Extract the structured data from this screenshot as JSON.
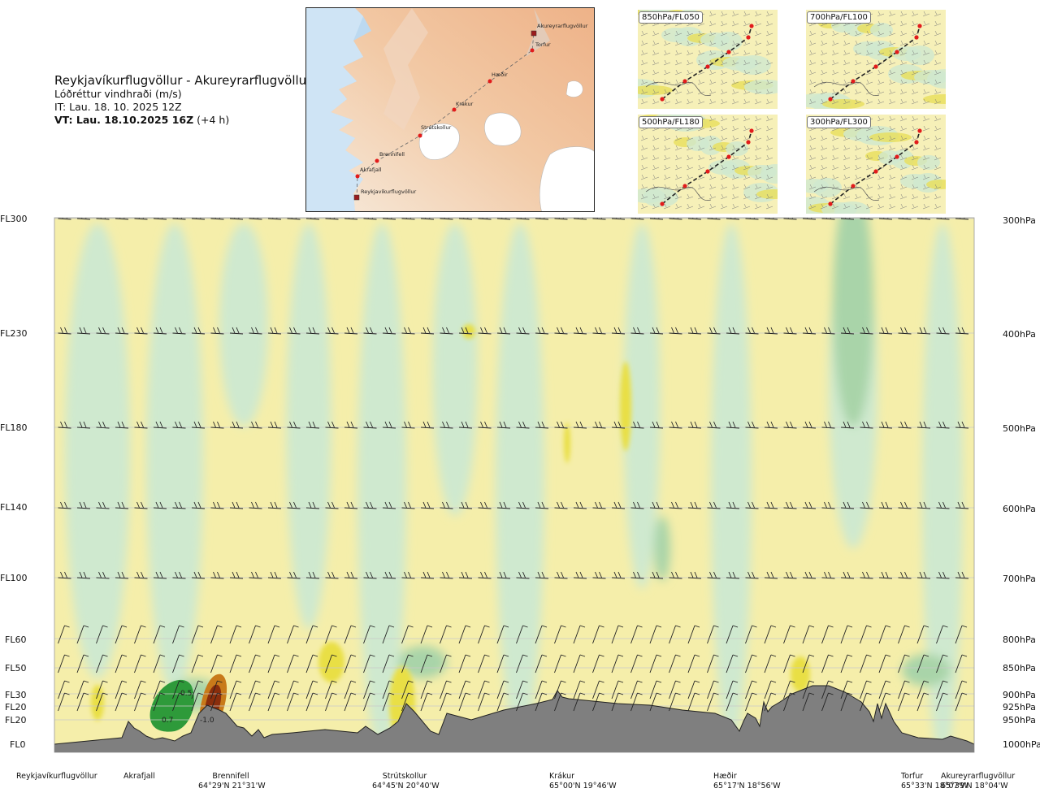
{
  "header": {
    "route": "Reykjavíkurflugvöllur - Akureyrarflugvöllur",
    "variable": "Lóðréttur vindhraði (m/s)",
    "issue_time": "IT: Lau. 18. 10. 2025 12Z",
    "valid_time": "VT: Lau. 18.10.2025 16Z",
    "valid_offset": " (+4 h)"
  },
  "route_map": {
    "waypoints": [
      "Akureyrarflugvöllur",
      "Torfur",
      "Hæðir",
      "Krákur",
      "Strútskollur",
      "Brennifell",
      "Akrafjall",
      "Reykjavíkurflugvöllur"
    ]
  },
  "mini_maps": [
    "850hPa/FL050",
    "700hPa/FL100",
    "500hPa/FL180",
    "300hPa/FL300"
  ],
  "colors": {
    "updraft_light": "#cfe9cf",
    "updraft_mid": "#a9d4a9",
    "updraft_strong": "#2e9a3a",
    "downdraft_light": "#f5eeaa",
    "downdraft_mid": "#e9df45",
    "downdraft_strong": "#8a2e0c",
    "terrain": "#7f7f7f"
  },
  "chart_data": {
    "type": "heatmap",
    "title": "Lóðréttur vindhraði (m/s)",
    "y_left_labels": [
      "FL300",
      "FL230",
      "FL180",
      "FL140",
      "FL100",
      "FL60",
      "FL50",
      "FL30",
      "FL20",
      "FL20",
      "FL0"
    ],
    "y_right_labels": [
      "300hPa",
      "400hPa",
      "500hPa",
      "600hPa",
      "700hPa",
      "800hPa",
      "850hPa",
      "900hPa",
      "925hPa",
      "950hPa",
      "1000hPa"
    ],
    "pressure_levels_hPa": [
      300,
      400,
      500,
      600,
      700,
      800,
      850,
      900,
      925,
      950,
      1000
    ],
    "x_locations": [
      {
        "name": "Reykjavíkurflugvöllur",
        "coord": ""
      },
      {
        "name": "Akrafjall",
        "coord": ""
      },
      {
        "name": "Brennifell",
        "coord": "64°29'N 21°31'W"
      },
      {
        "name": "Strútskollur",
        "coord": "64°45'N 20°40'W"
      },
      {
        "name": "Krákur",
        "coord": "65°00'N 19°46'W"
      },
      {
        "name": "Hæðir",
        "coord": "65°17'N 18°56'W"
      },
      {
        "name": "Torfur",
        "coord": "65°33'N 18°07'W"
      },
      {
        "name": "Akureyrarflugvöllur",
        "coord": "65°39'N 18°04'W"
      }
    ],
    "annotations": [
      "0.5",
      "0.7",
      "-1.0"
    ],
    "barb_levels_hPa": [
      300,
      400,
      500,
      600,
      700,
      800,
      850,
      900,
      925
    ]
  }
}
